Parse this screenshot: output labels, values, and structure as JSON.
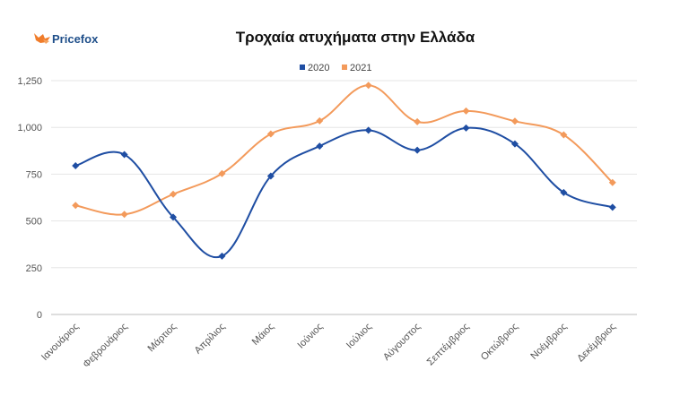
{
  "brand": {
    "name": "Pricefox"
  },
  "colors": {
    "s2020": "#1f4ea3",
    "s2021": "#f39a5b",
    "brand": "#1f4f8a",
    "fox": "#f07c2a"
  },
  "chart_data": {
    "type": "line",
    "title": "Τροχαία ατυχήματα στην Ελλάδα",
    "xlabel": "",
    "ylabel": "",
    "ylim": [
      0,
      1250
    ],
    "yticks": [
      "0",
      "250",
      "500",
      "750",
      "1,000",
      "1,250"
    ],
    "categories": [
      "Ιανουάριος",
      "Φεβρουάριος",
      "Μάρτιος",
      "Απρίλιος",
      "Μάιος",
      "Ιούνιος",
      "Ιούλιος",
      "Αύγουστος",
      "Σεπτέμβριος",
      "Οκτώβριος",
      "Νοέμβριος",
      "Δεκέμβριος"
    ],
    "legend_position": "top-center",
    "grid": true,
    "series": [
      {
        "name": "2020",
        "color": "#1f4ea3",
        "values": [
          795,
          855,
          520,
          312,
          740,
          900,
          985,
          878,
          997,
          912,
          652,
          573
        ]
      },
      {
        "name": "2021",
        "color": "#f39a5b",
        "values": [
          583,
          535,
          643,
          753,
          965,
          1035,
          1225,
          1030,
          1088,
          1033,
          960,
          705
        ]
      }
    ]
  }
}
